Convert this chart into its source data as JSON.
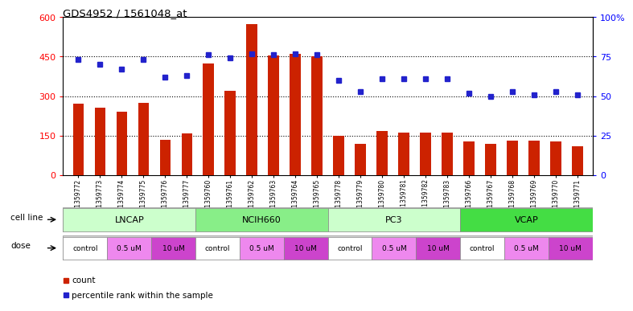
{
  "title": "GDS4952 / 1561048_at",
  "samples": [
    "GSM1359772",
    "GSM1359773",
    "GSM1359774",
    "GSM1359775",
    "GSM1359776",
    "GSM1359777",
    "GSM1359760",
    "GSM1359761",
    "GSM1359762",
    "GSM1359763",
    "GSM1359764",
    "GSM1359765",
    "GSM1359778",
    "GSM1359779",
    "GSM1359780",
    "GSM1359781",
    "GSM1359782",
    "GSM1359783",
    "GSM1359766",
    "GSM1359767",
    "GSM1359768",
    "GSM1359769",
    "GSM1359770",
    "GSM1359771"
  ],
  "counts": [
    270,
    255,
    240,
    275,
    135,
    158,
    425,
    320,
    575,
    455,
    460,
    450,
    148,
    118,
    168,
    162,
    162,
    162,
    128,
    118,
    132,
    132,
    128,
    108
  ],
  "percentiles": [
    73,
    70,
    67,
    73,
    62,
    63,
    76,
    74,
    77,
    76,
    77,
    76,
    60,
    53,
    61,
    61,
    61,
    61,
    52,
    50,
    53,
    51,
    53,
    51
  ],
  "cell_lines": [
    {
      "name": "LNCAP",
      "start": 0,
      "end": 6,
      "color": "#ccffcc"
    },
    {
      "name": "NCIH660",
      "start": 6,
      "end": 12,
      "color": "#88ee88"
    },
    {
      "name": "PC3",
      "start": 12,
      "end": 18,
      "color": "#ccffcc"
    },
    {
      "name": "VCAP",
      "start": 18,
      "end": 24,
      "color": "#44dd44"
    }
  ],
  "doses": [
    {
      "name": "control",
      "start": 0,
      "end": 2,
      "color": "#ffffff"
    },
    {
      "name": "0.5 uM",
      "start": 2,
      "end": 4,
      "color": "#ee88ee"
    },
    {
      "name": "10 uM",
      "start": 4,
      "end": 6,
      "color": "#cc44cc"
    },
    {
      "name": "control",
      "start": 6,
      "end": 8,
      "color": "#ffffff"
    },
    {
      "name": "0.5 uM",
      "start": 8,
      "end": 10,
      "color": "#ee88ee"
    },
    {
      "name": "10 uM",
      "start": 10,
      "end": 12,
      "color": "#cc44cc"
    },
    {
      "name": "control",
      "start": 12,
      "end": 14,
      "color": "#ffffff"
    },
    {
      "name": "0.5 uM",
      "start": 14,
      "end": 16,
      "color": "#ee88ee"
    },
    {
      "name": "10 uM",
      "start": 16,
      "end": 18,
      "color": "#cc44cc"
    },
    {
      "name": "control",
      "start": 18,
      "end": 20,
      "color": "#ffffff"
    },
    {
      "name": "0.5 uM",
      "start": 20,
      "end": 22,
      "color": "#ee88ee"
    },
    {
      "name": "10 uM",
      "start": 22,
      "end": 24,
      "color": "#cc44cc"
    }
  ],
  "bar_color": "#cc2200",
  "dot_color": "#2222cc",
  "ylim_left": [
    0,
    600
  ],
  "ylim_right": [
    0,
    100
  ],
  "yticks_left": [
    0,
    150,
    300,
    450,
    600
  ],
  "ytick_labels_left": [
    "0",
    "150",
    "300",
    "450",
    "600"
  ],
  "yticks_right": [
    0,
    25,
    50,
    75,
    100
  ],
  "ytick_labels_right": [
    "0",
    "25",
    "50",
    "75",
    "100%"
  ],
  "grid_values": [
    150,
    300,
    450
  ],
  "plot_bg": "#ffffff",
  "fig_bg": "#ffffff",
  "cell_line_bg": "#e0e0e0",
  "dose_bg": "#e0e0e0"
}
